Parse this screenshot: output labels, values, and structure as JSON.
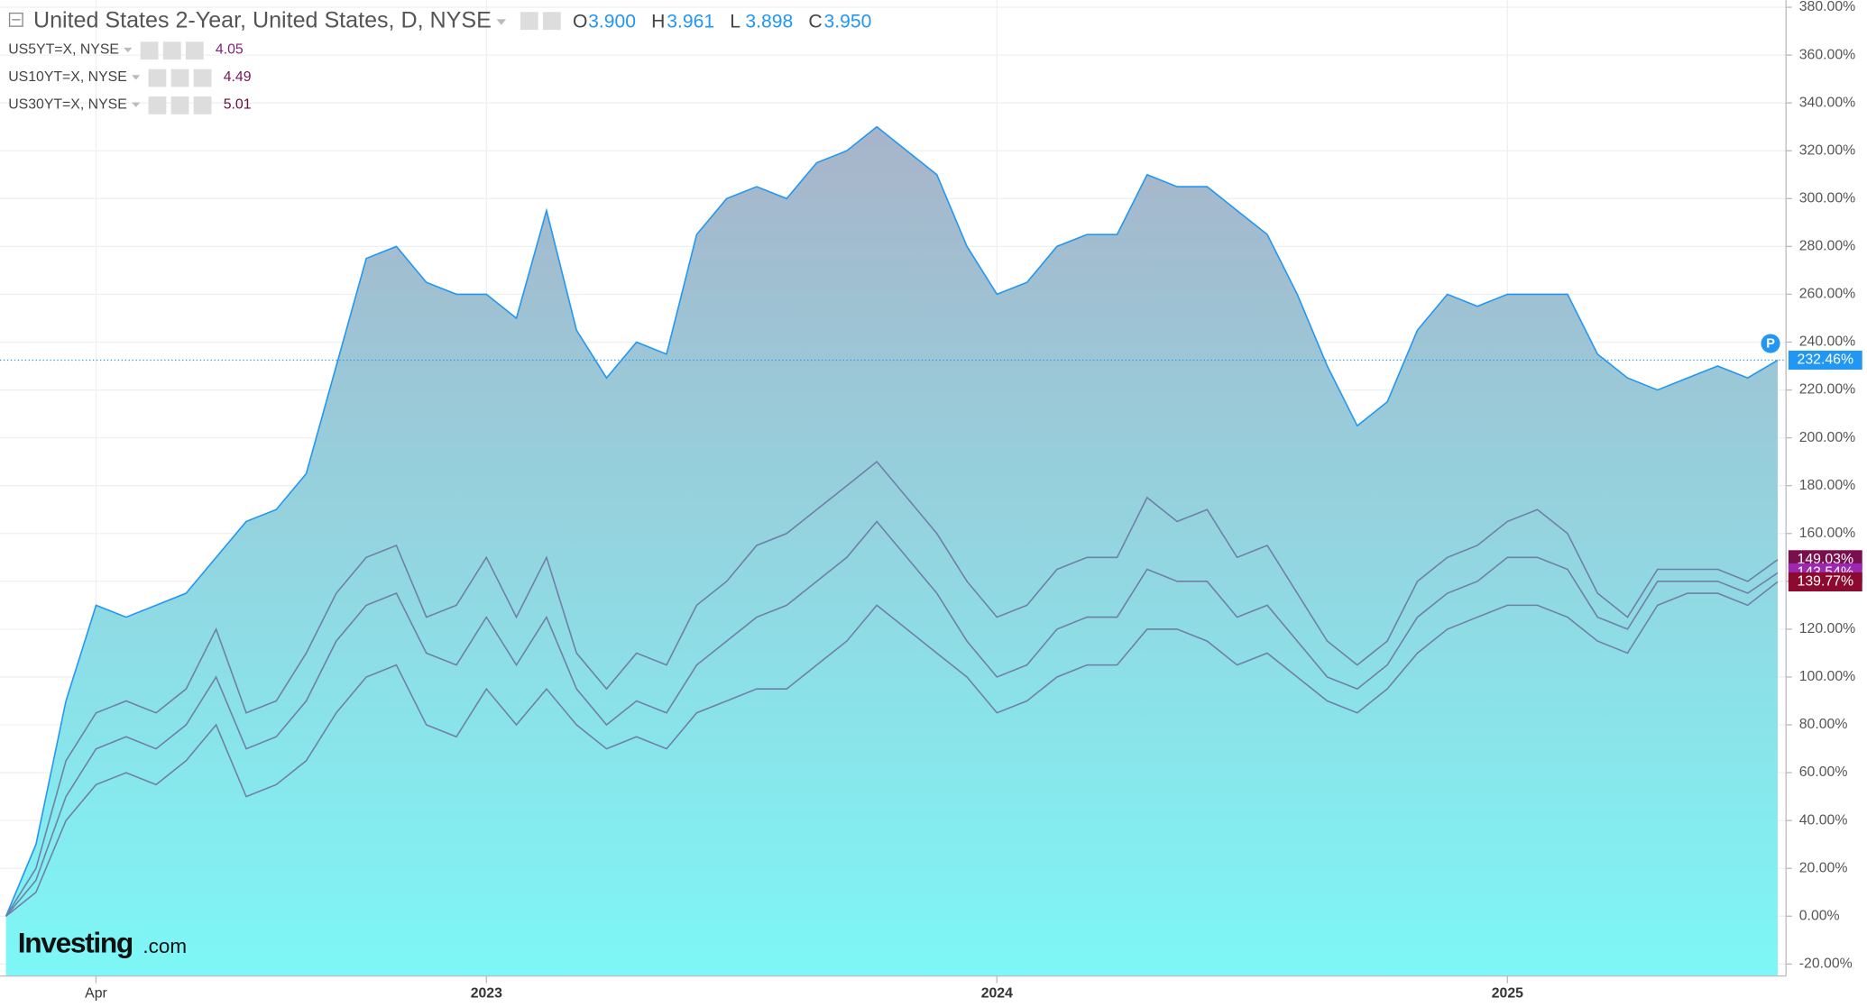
{
  "chart_data": {
    "type": "line",
    "title": "United States 2-Year, United States, D, NYSE",
    "ohlc": [
      {
        "label": "O",
        "value": "3.900"
      },
      {
        "label": "H",
        "value": "3.961"
      },
      {
        "label": "L",
        "value": "3.898"
      },
      {
        "label": "C",
        "value": "3.950"
      }
    ],
    "marker": "P",
    "logo": "Investing",
    "logo_suffix": ".com",
    "categories": [
      null,
      null,
      null,
      "Apr",
      null,
      null,
      null,
      null,
      null,
      null,
      null,
      null,
      null,
      null,
      null,
      null,
      "2023",
      null,
      null,
      null,
      null,
      null,
      null,
      null,
      null,
      null,
      null,
      null,
      null,
      null,
      null,
      null,
      null,
      "2024",
      null,
      null,
      null,
      null,
      null,
      null,
      null,
      null,
      null,
      null,
      null,
      null,
      null,
      null,
      null,
      null,
      "2025",
      null,
      null,
      null,
      null,
      null,
      null,
      null,
      null,
      null
    ],
    "ylim": [
      -25,
      383
    ],
    "yticks": [
      {
        "value": -20,
        "label": "-20.00%"
      },
      {
        "value": 0,
        "label": "0.00%"
      },
      {
        "value": 20,
        "label": "20.00%"
      },
      {
        "value": 40,
        "label": "40.00%"
      },
      {
        "value": 60,
        "label": "60.00%"
      },
      {
        "value": 80,
        "label": "80.00%"
      },
      {
        "value": 100,
        "label": "100.00%"
      },
      {
        "value": 120,
        "label": "120.00%"
      },
      {
        "value": 140,
        "label": "140.00%"
      },
      {
        "value": 160,
        "label": "160.00%"
      },
      {
        "value": 180,
        "label": "180.00%"
      },
      {
        "value": 200,
        "label": "200.00%"
      },
      {
        "value": 220,
        "label": "220.00%"
      },
      {
        "value": 240,
        "label": "240.00%"
      },
      {
        "value": 260,
        "label": "260.00%"
      },
      {
        "value": 280,
        "label": "280.00%"
      },
      {
        "value": 300,
        "label": "300.00%"
      },
      {
        "value": 320,
        "label": "320.00%"
      },
      {
        "value": 340,
        "label": "340.00%"
      },
      {
        "value": 360,
        "label": "360.00%"
      },
      {
        "value": 380,
        "label": "380.00%"
      }
    ],
    "grid": true,
    "series": [
      {
        "name": "United States 2-Year",
        "color": "#2196f3",
        "label_color": "#2196f3",
        "area": true,
        "values": [
          0,
          30,
          90,
          130,
          125,
          130,
          135,
          150,
          165,
          170,
          185,
          230,
          275,
          280,
          265,
          260,
          260,
          250,
          295,
          245,
          225,
          240,
          235,
          285,
          300,
          305,
          300,
          315,
          320,
          330,
          320,
          310,
          280,
          260,
          265,
          280,
          285,
          285,
          310,
          305,
          305,
          295,
          285,
          260,
          230,
          205,
          215,
          245,
          260,
          255,
          260,
          260,
          260,
          235,
          225,
          220,
          225,
          230,
          225,
          232.46
        ],
        "value_labels": [
          null,
          null,
          null,
          null,
          null,
          null,
          null,
          null,
          null,
          null,
          null,
          null,
          null,
          null,
          null,
          null,
          null,
          null,
          null,
          null,
          null,
          null,
          null,
          null,
          null,
          null,
          null,
          null,
          null,
          null,
          null,
          null,
          null,
          null,
          null,
          null,
          null,
          null,
          null,
          null,
          null,
          null,
          null,
          null,
          null,
          null,
          null,
          null,
          null,
          null,
          null,
          null,
          null,
          null,
          null,
          null,
          null,
          null,
          null,
          "232.46%"
        ]
      },
      {
        "name": "US5YT=X, NYSE",
        "legend_value": "4.05",
        "legend_color": "#7b1f7b",
        "color": "#6f7fa8",
        "label_color": "#7a0f4e",
        "values": [
          0,
          20,
          65,
          85,
          90,
          85,
          95,
          120,
          85,
          90,
          110,
          135,
          150,
          155,
          125,
          130,
          150,
          125,
          150,
          110,
          95,
          110,
          105,
          130,
          140,
          155,
          160,
          170,
          180,
          190,
          175,
          160,
          140,
          125,
          130,
          145,
          150,
          150,
          175,
          165,
          170,
          150,
          155,
          135,
          115,
          105,
          115,
          140,
          150,
          155,
          165,
          170,
          160,
          135,
          125,
          145,
          145,
          145,
          140,
          149.03
        ],
        "value_labels": [
          null,
          null,
          null,
          null,
          null,
          null,
          null,
          null,
          null,
          null,
          null,
          null,
          null,
          null,
          null,
          null,
          null,
          null,
          null,
          null,
          null,
          null,
          null,
          null,
          null,
          null,
          null,
          null,
          null,
          null,
          null,
          null,
          null,
          null,
          null,
          null,
          null,
          null,
          null,
          null,
          null,
          null,
          null,
          null,
          null,
          null,
          null,
          null,
          null,
          null,
          null,
          null,
          null,
          null,
          null,
          null,
          null,
          null,
          null,
          "149.03%"
        ]
      },
      {
        "name": "US10YT=X, NYSE",
        "legend_value": "4.49",
        "legend_color": "#7a1458",
        "color": "#6f7fa8",
        "label_color": "#9c27b0",
        "values": [
          0,
          15,
          50,
          70,
          75,
          70,
          80,
          100,
          70,
          75,
          90,
          115,
          130,
          135,
          110,
          105,
          125,
          105,
          125,
          95,
          80,
          90,
          85,
          105,
          115,
          125,
          130,
          140,
          150,
          165,
          150,
          135,
          115,
          100,
          105,
          120,
          125,
          125,
          145,
          140,
          140,
          125,
          130,
          115,
          100,
          95,
          105,
          125,
          135,
          140,
          150,
          150,
          145,
          125,
          120,
          140,
          140,
          140,
          135,
          143.54
        ],
        "value_labels": [
          null,
          null,
          null,
          null,
          null,
          null,
          null,
          null,
          null,
          null,
          null,
          null,
          null,
          null,
          null,
          null,
          null,
          null,
          null,
          null,
          null,
          null,
          null,
          null,
          null,
          null,
          null,
          null,
          null,
          null,
          null,
          null,
          null,
          null,
          null,
          null,
          null,
          null,
          null,
          null,
          null,
          null,
          null,
          null,
          null,
          null,
          null,
          null,
          null,
          null,
          null,
          null,
          null,
          null,
          null,
          null,
          null,
          null,
          null,
          "143.54%"
        ]
      },
      {
        "name": "US30YT=X, NYSE",
        "legend_value": "5.01",
        "legend_color": "#6a0a3a",
        "color": "#6f7fa8",
        "label_color": "#8b0a2e",
        "values": [
          0,
          10,
          40,
          55,
          60,
          55,
          65,
          80,
          50,
          55,
          65,
          85,
          100,
          105,
          80,
          75,
          95,
          80,
          95,
          80,
          70,
          75,
          70,
          85,
          90,
          95,
          95,
          105,
          115,
          130,
          120,
          110,
          100,
          85,
          90,
          100,
          105,
          105,
          120,
          120,
          115,
          105,
          110,
          100,
          90,
          85,
          95,
          110,
          120,
          125,
          130,
          130,
          125,
          115,
          110,
          130,
          135,
          135,
          130,
          139.77
        ],
        "value_labels": [
          null,
          null,
          null,
          null,
          null,
          null,
          null,
          null,
          null,
          null,
          null,
          null,
          null,
          null,
          null,
          null,
          null,
          null,
          null,
          null,
          null,
          null,
          null,
          null,
          null,
          null,
          null,
          null,
          null,
          null,
          null,
          null,
          null,
          null,
          null,
          null,
          null,
          null,
          null,
          null,
          null,
          null,
          null,
          null,
          null,
          null,
          null,
          null,
          null,
          null,
          null,
          null,
          null,
          null,
          null,
          null,
          null,
          null,
          null,
          "139.77%"
        ]
      }
    ]
  }
}
